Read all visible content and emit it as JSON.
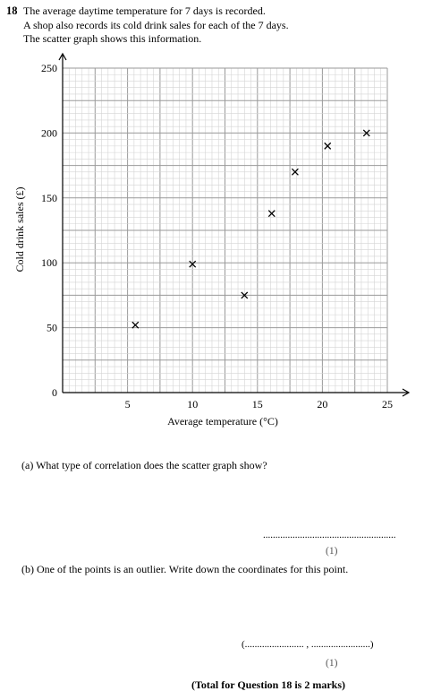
{
  "question": {
    "number": "18",
    "intro": [
      "The average daytime temperature for 7 days is recorded.",
      "A shop also records its cold drink sales for each of the 7 days.",
      "The scatter graph shows this information."
    ]
  },
  "chart_data": {
    "type": "scatter",
    "xlabel": "Average temperature (°C)",
    "ylabel": "Cold drink sales (£)",
    "xlim": [
      0,
      25
    ],
    "ylim": [
      0,
      250
    ],
    "xticks": [
      5,
      10,
      15,
      20,
      25
    ],
    "yticks": [
      0,
      50,
      100,
      150,
      200,
      250
    ],
    "grid": true,
    "marker": "x",
    "points": [
      {
        "x": 5.6,
        "y": 52
      },
      {
        "x": 10,
        "y": 99
      },
      {
        "x": 14,
        "y": 75
      },
      {
        "x": 16.1,
        "y": 138
      },
      {
        "x": 17.9,
        "y": 170
      },
      {
        "x": 20.4,
        "y": 190
      },
      {
        "x": 23.4,
        "y": 200
      }
    ]
  },
  "part_a": {
    "question": "(a) What type of correlation does the scatter graph show?",
    "answer_line": "......................................................",
    "marks": "(1)"
  },
  "part_b": {
    "question": "(b) One of the points is an outlier. Write down the coordinates for this point.",
    "answer_line": "(........................ , ........................)",
    "marks": "(1)"
  },
  "total": "(Total for Question 18 is 2 marks)"
}
